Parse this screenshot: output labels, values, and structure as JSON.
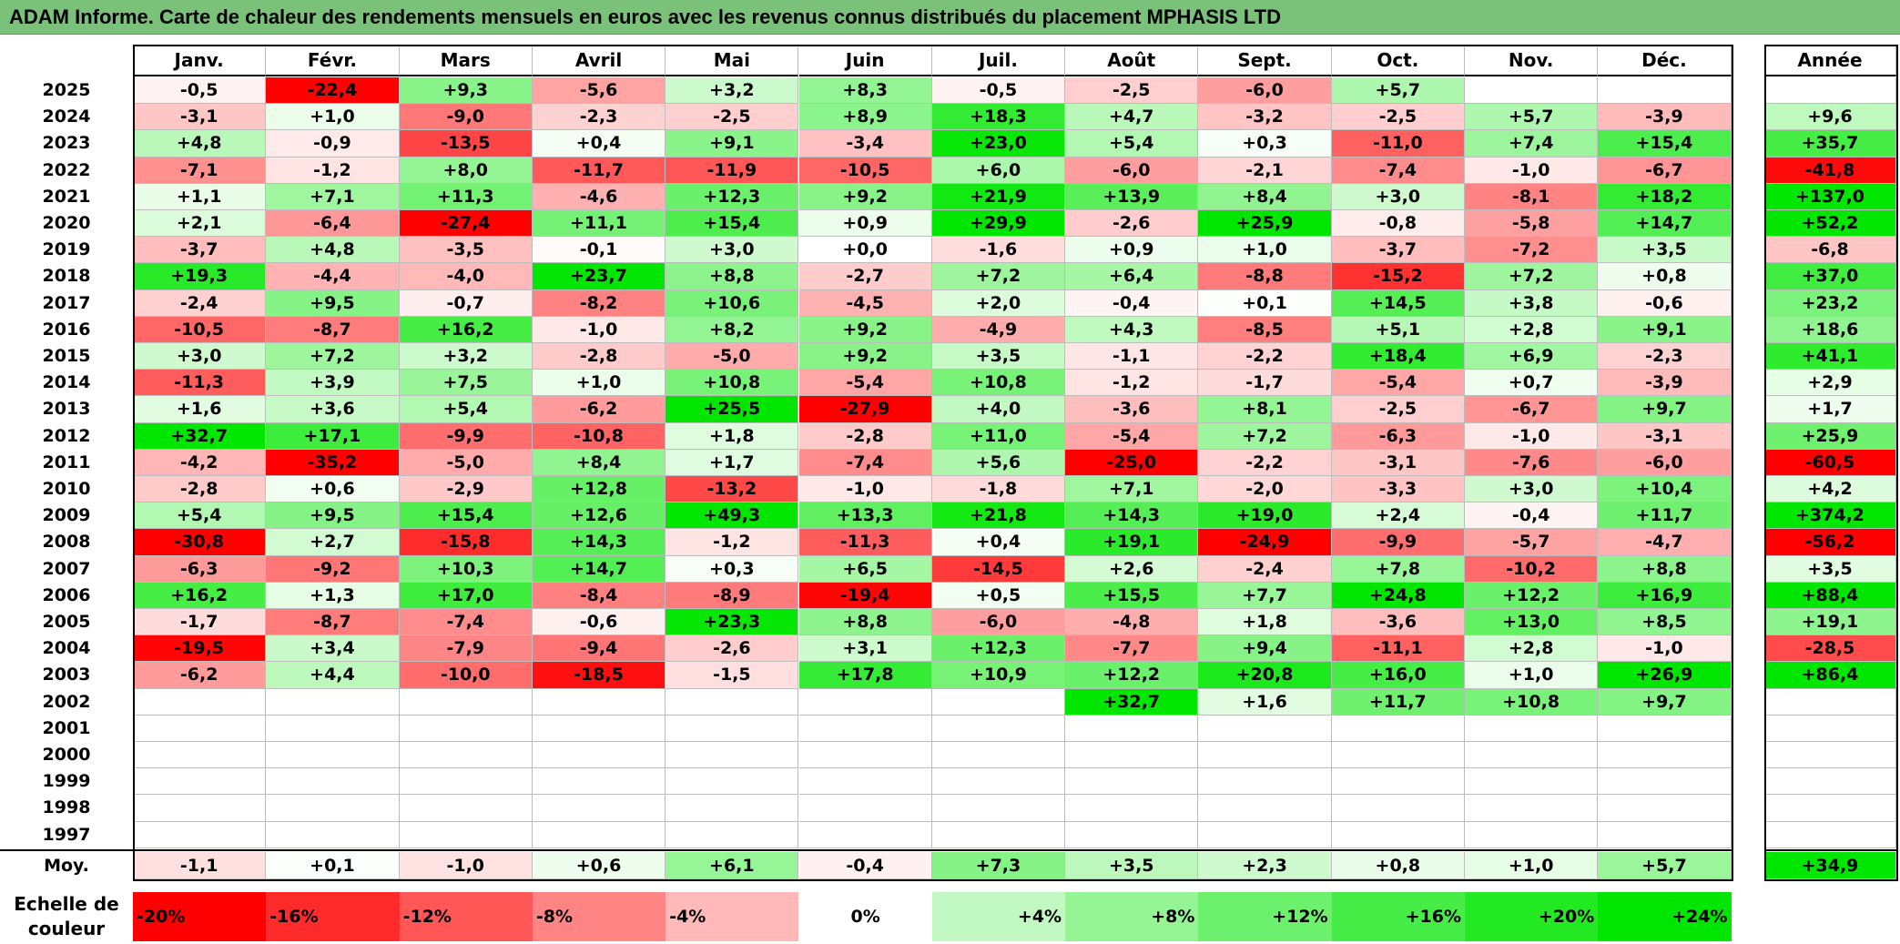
{
  "title": "ADAM Informe. Carte de chaleur des rendements mensuels en euros avec les revenus connus distribués du placement MPHASIS LTD",
  "colors": {
    "title_bg": "#7ac27a",
    "neg_max": "#ff0000",
    "pos_max": "#00e600",
    "neutral": "#ffffff"
  },
  "chart_data": {
    "type": "heatmap",
    "title": "ADAM Informe. Carte de chaleur des rendements mensuels en euros avec les revenus connus distribués du placement MPHASIS LTD",
    "months": [
      "Janv.",
      "Févr.",
      "Mars",
      "Avril",
      "Mai",
      "Juin",
      "Juil.",
      "Août",
      "Sept.",
      "Oct.",
      "Nov.",
      "Déc."
    ],
    "year_header": "Année",
    "rows": [
      {
        "year": "2025",
        "values": [
          "-0,5",
          "-22,4",
          "+9,3",
          "-5,6",
          "+3,2",
          "+8,3",
          "-0,5",
          "-2,5",
          "-6,0",
          "+5,7",
          "",
          ""
        ],
        "annual": ""
      },
      {
        "year": "2024",
        "values": [
          "-3,1",
          "+1,0",
          "-9,0",
          "-2,3",
          "-2,5",
          "+8,9",
          "+18,3",
          "+4,7",
          "-3,2",
          "-2,5",
          "+5,7",
          "-3,9"
        ],
        "annual": "+9,6"
      },
      {
        "year": "2023",
        "values": [
          "+4,8",
          "-0,9",
          "-13,5",
          "+0,4",
          "+9,1",
          "-3,4",
          "+23,0",
          "+5,4",
          "+0,3",
          "-11,0",
          "+7,4",
          "+15,4"
        ],
        "annual": "+35,7"
      },
      {
        "year": "2022",
        "values": [
          "-7,1",
          "-1,2",
          "+8,0",
          "-11,7",
          "-11,9",
          "-10,5",
          "+6,0",
          "-6,0",
          "-2,1",
          "-7,4",
          "-1,0",
          "-6,7"
        ],
        "annual": "-41,8"
      },
      {
        "year": "2021",
        "values": [
          "+1,1",
          "+7,1",
          "+11,3",
          "-4,6",
          "+12,3",
          "+9,2",
          "+21,9",
          "+13,9",
          "+8,4",
          "+3,0",
          "-8,1",
          "+18,2"
        ],
        "annual": "+137,0"
      },
      {
        "year": "2020",
        "values": [
          "+2,1",
          "-6,4",
          "-27,4",
          "+11,1",
          "+15,4",
          "+0,9",
          "+29,9",
          "-2,6",
          "+25,9",
          "-0,8",
          "-5,8",
          "+14,7"
        ],
        "annual": "+52,2"
      },
      {
        "year": "2019",
        "values": [
          "-3,7",
          "+4,8",
          "-3,5",
          "-0,1",
          "+3,0",
          "+0,0",
          "-1,6",
          "+0,9",
          "+1,0",
          "-3,7",
          "-7,2",
          "+3,5"
        ],
        "annual": "-6,8"
      },
      {
        "year": "2018",
        "values": [
          "+19,3",
          "-4,4",
          "-4,0",
          "+23,7",
          "+8,8",
          "-2,7",
          "+7,2",
          "+6,4",
          "-8,8",
          "-15,2",
          "+7,2",
          "+0,8"
        ],
        "annual": "+37,0"
      },
      {
        "year": "2017",
        "values": [
          "-2,4",
          "+9,5",
          "-0,7",
          "-8,2",
          "+10,6",
          "-4,5",
          "+2,0",
          "-0,4",
          "+0,1",
          "+14,5",
          "+3,8",
          "-0,6"
        ],
        "annual": "+23,2"
      },
      {
        "year": "2016",
        "values": [
          "-10,5",
          "-8,7",
          "+16,2",
          "-1,0",
          "+8,2",
          "+9,2",
          "-4,9",
          "+4,3",
          "-8,5",
          "+5,1",
          "+2,8",
          "+9,1"
        ],
        "annual": "+18,6"
      },
      {
        "year": "2015",
        "values": [
          "+3,0",
          "+7,2",
          "+3,2",
          "-2,8",
          "-5,0",
          "+9,2",
          "+3,5",
          "-1,1",
          "-2,2",
          "+18,4",
          "+6,9",
          "-2,3"
        ],
        "annual": "+41,1"
      },
      {
        "year": "2014",
        "values": [
          "-11,3",
          "+3,9",
          "+7,5",
          "+1,0",
          "+10,8",
          "-5,4",
          "+10,8",
          "-1,2",
          "-1,7",
          "-5,4",
          "+0,7",
          "-3,9"
        ],
        "annual": "+2,9"
      },
      {
        "year": "2013",
        "values": [
          "+1,6",
          "+3,6",
          "+5,4",
          "-6,2",
          "+25,5",
          "-27,9",
          "+4,0",
          "-3,6",
          "+8,1",
          "-2,5",
          "-6,7",
          "+9,7"
        ],
        "annual": "+1,7"
      },
      {
        "year": "2012",
        "values": [
          "+32,7",
          "+17,1",
          "-9,9",
          "-10,8",
          "+1,8",
          "-2,8",
          "+11,0",
          "-5,4",
          "+7,2",
          "-6,3",
          "-1,0",
          "-3,1"
        ],
        "annual": "+25,9"
      },
      {
        "year": "2011",
        "values": [
          "-4,2",
          "-35,2",
          "-5,0",
          "+8,4",
          "+1,7",
          "-7,4",
          "+5,6",
          "-25,0",
          "-2,2",
          "-3,1",
          "-7,6",
          "-6,0"
        ],
        "annual": "-60,5"
      },
      {
        "year": "2010",
        "values": [
          "-2,8",
          "+0,6",
          "-2,9",
          "+12,8",
          "-13,2",
          "-1,0",
          "-1,8",
          "+7,1",
          "-2,0",
          "-3,3",
          "+3,0",
          "+10,4"
        ],
        "annual": "+4,2"
      },
      {
        "year": "2009",
        "values": [
          "+5,4",
          "+9,5",
          "+15,4",
          "+12,6",
          "+49,3",
          "+13,3",
          "+21,8",
          "+14,3",
          "+19,0",
          "+2,4",
          "-0,4",
          "+11,7"
        ],
        "annual": "+374,2"
      },
      {
        "year": "2008",
        "values": [
          "-30,8",
          "+2,7",
          "-15,8",
          "+14,3",
          "-1,2",
          "-11,3",
          "+0,4",
          "+19,1",
          "-24,9",
          "-9,9",
          "-5,7",
          "-4,7"
        ],
        "annual": "-56,2"
      },
      {
        "year": "2007",
        "values": [
          "-6,3",
          "-9,2",
          "+10,3",
          "+14,7",
          "+0,3",
          "+6,5",
          "-14,5",
          "+2,6",
          "-2,4",
          "+7,8",
          "-10,2",
          "+8,8"
        ],
        "annual": "+3,5"
      },
      {
        "year": "2006",
        "values": [
          "+16,2",
          "+1,3",
          "+17,0",
          "-8,4",
          "-8,9",
          "-19,4",
          "+0,5",
          "+15,5",
          "+7,7",
          "+24,8",
          "+12,2",
          "+16,9"
        ],
        "annual": "+88,4"
      },
      {
        "year": "2005",
        "values": [
          "-1,7",
          "-8,7",
          "-7,4",
          "-0,6",
          "+23,3",
          "+8,8",
          "-6,0",
          "-4,8",
          "+1,8",
          "-3,6",
          "+13,0",
          "+8,5"
        ],
        "annual": "+19,1"
      },
      {
        "year": "2004",
        "values": [
          "-19,5",
          "+3,4",
          "-7,9",
          "-9,4",
          "-2,6",
          "+3,1",
          "+12,3",
          "-7,7",
          "+9,4",
          "-11,1",
          "+2,8",
          "-1,0"
        ],
        "annual": "-28,5"
      },
      {
        "year": "2003",
        "values": [
          "-6,2",
          "+4,4",
          "-10,0",
          "-18,5",
          "-1,5",
          "+17,8",
          "+10,9",
          "+12,2",
          "+20,8",
          "+16,0",
          "+1,0",
          "+26,9"
        ],
        "annual": "+86,4"
      },
      {
        "year": "2002",
        "values": [
          "",
          "",
          "",
          "",
          "",
          "",
          "",
          "+32,7",
          "+1,6",
          "+11,7",
          "+10,8",
          "+9,7"
        ],
        "annual": ""
      },
      {
        "year": "2001",
        "values": [
          "",
          "",
          "",
          "",
          "",
          "",
          "",
          "",
          "",
          "",
          "",
          ""
        ],
        "annual": ""
      },
      {
        "year": "2000",
        "values": [
          "",
          "",
          "",
          "",
          "",
          "",
          "",
          "",
          "",
          "",
          "",
          ""
        ],
        "annual": ""
      },
      {
        "year": "1999",
        "values": [
          "",
          "",
          "",
          "",
          "",
          "",
          "",
          "",
          "",
          "",
          "",
          ""
        ],
        "annual": ""
      },
      {
        "year": "1998",
        "values": [
          "",
          "",
          "",
          "",
          "",
          "",
          "",
          "",
          "",
          "",
          "",
          ""
        ],
        "annual": ""
      },
      {
        "year": "1997",
        "values": [
          "",
          "",
          "",
          "",
          "",
          "",
          "",
          "",
          "",
          "",
          "",
          ""
        ],
        "annual": ""
      }
    ],
    "average": {
      "label": "Moy.",
      "values": [
        "-1,1",
        "+0,1",
        "-1,0",
        "+0,6",
        "+6,1",
        "-0,4",
        "+7,3",
        "+3,5",
        "+2,3",
        "+0,8",
        "+1,0",
        "+5,7"
      ],
      "annual": "+34,9"
    },
    "scale": {
      "label": "Echelle de couleur",
      "steps": [
        "-20%",
        "-16%",
        "-12%",
        "-8%",
        "-4%",
        "0%",
        "+4%",
        "+8%",
        "+12%",
        "+16%",
        "+20%",
        "+24%"
      ],
      "step_values": [
        -20,
        -16,
        -12,
        -8,
        -4,
        0,
        4,
        8,
        12,
        16,
        20,
        24
      ]
    }
  }
}
